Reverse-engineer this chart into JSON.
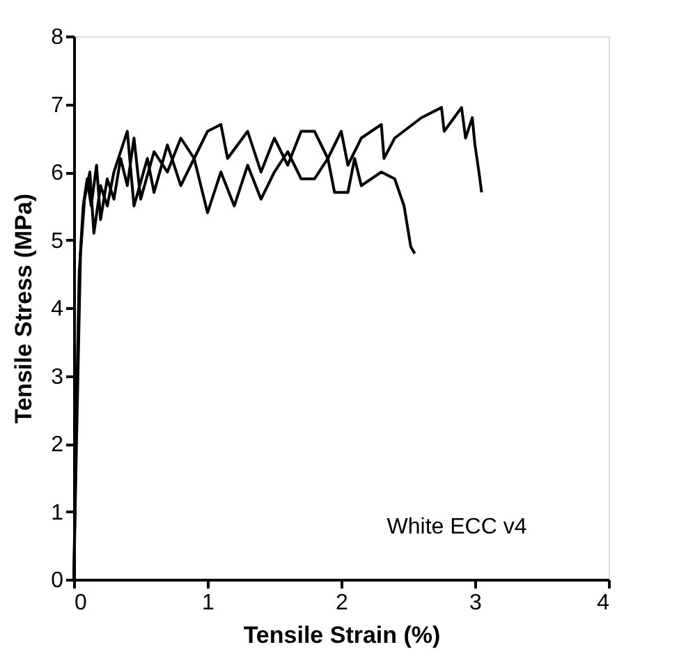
{
  "chart_data": {
    "type": "line",
    "xlabel": "Tensile Strain (%)",
    "ylabel": "Tensile Stress (MPa)",
    "xlim": [
      0,
      4
    ],
    "xticks": [
      0,
      1,
      2,
      3,
      4
    ],
    "ylim": [
      0,
      8
    ],
    "yticks": [
      0,
      1,
      2,
      3,
      4,
      5,
      6,
      7,
      8
    ],
    "grid": false,
    "legend": false,
    "marker": "none",
    "line_style": "solid",
    "annotations": [
      "White ECC v4"
    ],
    "series": [
      {
        "color": "#000000",
        "x": [
          0,
          0.02,
          0.04,
          0.07,
          0.1,
          0.13,
          0.17,
          0.2,
          0.25,
          0.3,
          0.35,
          0.4,
          0.45,
          0.5,
          0.6,
          0.7,
          0.8,
          0.9,
          1.0,
          1.1,
          1.15,
          1.3,
          1.4,
          1.5,
          1.6,
          1.7,
          1.8,
          1.9,
          2.0,
          2.05,
          2.15,
          2.3,
          2.32,
          2.4,
          2.6,
          2.75,
          2.77,
          2.9,
          2.93,
          2.98,
          3.0,
          3.03,
          3.05
        ],
        "values": [
          0,
          2.5,
          4.5,
          5.5,
          5.9,
          5.5,
          6.1,
          5.3,
          5.9,
          5.6,
          6.2,
          5.8,
          6.5,
          5.6,
          6.3,
          6.0,
          6.5,
          6.2,
          6.6,
          6.7,
          6.2,
          6.6,
          6.0,
          6.5,
          6.1,
          6.6,
          6.6,
          6.2,
          6.6,
          6.1,
          6.5,
          6.7,
          6.2,
          6.5,
          6.8,
          6.95,
          6.6,
          6.95,
          6.5,
          6.8,
          6.4,
          6.0,
          5.7
        ]
      },
      {
        "color": "#000000",
        "x": [
          0,
          0.02,
          0.05,
          0.08,
          0.12,
          0.15,
          0.2,
          0.25,
          0.3,
          0.4,
          0.45,
          0.55,
          0.6,
          0.7,
          0.8,
          0.9,
          1.0,
          1.1,
          1.2,
          1.3,
          1.4,
          1.5,
          1.6,
          1.7,
          1.8,
          1.9,
          1.95,
          2.05,
          2.1,
          2.15,
          2.3,
          2.4,
          2.47,
          2.52,
          2.55
        ],
        "values": [
          0,
          2.0,
          4.8,
          5.6,
          6.0,
          5.1,
          5.8,
          5.5,
          6.0,
          6.6,
          5.5,
          6.2,
          5.7,
          6.4,
          5.8,
          6.2,
          5.4,
          6.0,
          5.5,
          6.1,
          5.6,
          6.0,
          6.3,
          5.9,
          5.9,
          6.2,
          5.7,
          5.7,
          6.2,
          5.8,
          6.0,
          5.9,
          5.5,
          4.9,
          4.8
        ]
      }
    ]
  }
}
